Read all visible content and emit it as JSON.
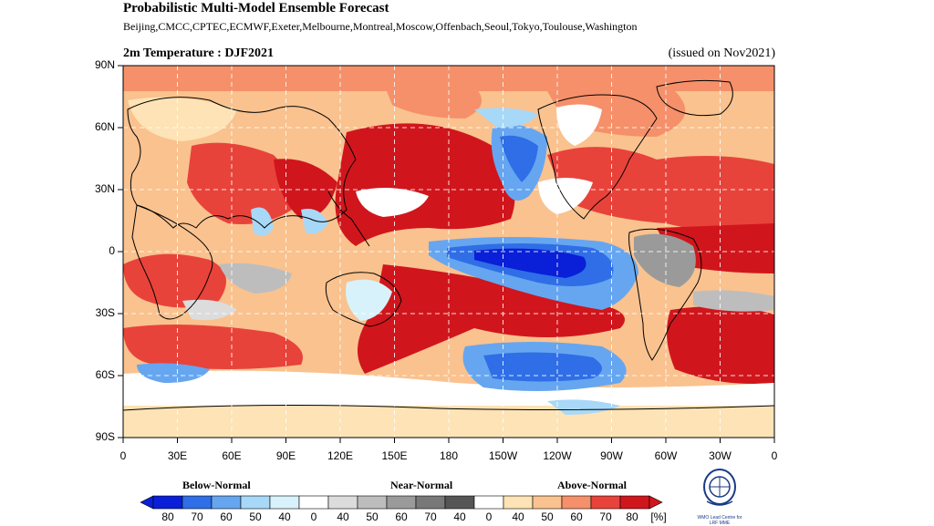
{
  "header": {
    "title": "Probabilistic Multi-Model Ensemble Forecast",
    "centres": "Beijing,CMCC,CPTEC,ECMWF,Exeter,Melbourne,Montreal,Moscow,Offenbach,Seoul,Tokyo,Toulouse,Washington"
  },
  "map": {
    "variable_label": "2m Temperature : DJF2021",
    "issued": "(issued on Nov2021)",
    "lat_labels": [
      "90N",
      "60N",
      "30N",
      "0",
      "30S",
      "60S",
      "90S"
    ],
    "lon_labels": [
      "0",
      "30E",
      "60E",
      "90E",
      "120E",
      "150E",
      "180",
      "150W",
      "120W",
      "90W",
      "60W",
      "30W",
      "0"
    ]
  },
  "legend": {
    "categories": [
      "Below-Normal",
      "Near-Normal",
      "Above-Normal"
    ],
    "ticks": [
      "80",
      "70",
      "60",
      "50",
      "40",
      "0",
      "40",
      "50",
      "60",
      "70",
      "40",
      "0",
      "40",
      "50",
      "60",
      "70",
      "80",
      "[%]"
    ],
    "colors": {
      "below": [
        "#0a1fd8",
        "#2f6ee6",
        "#66a6f0",
        "#a8d8f8",
        "#d8f2fb"
      ],
      "near": [
        "#ffffff",
        "#dcdcdc",
        "#bdbdbd",
        "#9a9a9a",
        "#787878",
        "#555555"
      ],
      "above": [
        "#ffffff",
        "#fde3b5",
        "#f9c28f",
        "#f5906a",
        "#e8433a",
        "#d0161c"
      ]
    }
  },
  "logo": {
    "text_line1": "WMO Lead Centre for",
    "text_line2": "LRF MME"
  }
}
